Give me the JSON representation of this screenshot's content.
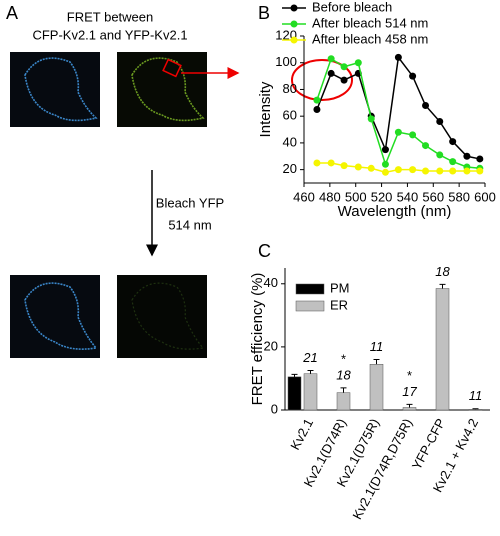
{
  "panel_a": {
    "label": "A",
    "title_line1": "FRET between",
    "title_line2": "CFP-Kv2.1 and YFP-Kv2.1",
    "bleach_line1": "Bleach YFP",
    "bleach_line2": "514 nm"
  },
  "chart_data": [
    {
      "type": "line",
      "panel_label": "B",
      "x_label": "Wavelength (nm)",
      "y_label": "Intensity",
      "x": [
        470,
        481,
        491,
        502,
        512,
        523,
        533,
        544,
        554,
        565,
        575,
        586,
        596
      ],
      "series": [
        {
          "name": "Before bleach",
          "color": "#000000",
          "values": [
            65,
            92,
            87,
            92,
            60,
            35,
            104,
            90,
            68,
            56,
            41,
            30,
            28
          ]
        },
        {
          "name": "After bleach 514 nm",
          "color": "#22dd22",
          "values": [
            72,
            103,
            97,
            100,
            58,
            24,
            48,
            46,
            38,
            31,
            26,
            22,
            21
          ]
        },
        {
          "name": "After bleach 458 nm",
          "color": "#f5f500",
          "values": [
            25,
            25,
            23,
            22,
            21,
            18,
            20,
            20,
            19,
            19,
            19,
            19,
            19
          ]
        }
      ],
      "xlim": [
        460,
        600
      ],
      "xticks": [
        460,
        480,
        500,
        520,
        540,
        560,
        580,
        600
      ],
      "ylim": [
        10,
        120
      ],
      "yticks": [
        20,
        40,
        60,
        80,
        100,
        120
      ],
      "legend": "top"
    },
    {
      "type": "bar",
      "panel_label": "C",
      "y_label": "FRET efficiency (%)",
      "categories": [
        "Kv2.1",
        "Kv2.1(D74R)",
        "Kv2.1(D75R)",
        "Kv2.1(D74R,D75R)",
        "YFP-CFP",
        "Kv2.1 + Kv4.2"
      ],
      "series": [
        {
          "name": "PM",
          "color": "#000000",
          "values": [
            10.5,
            null,
            null,
            null,
            null,
            null
          ],
          "errors": [
            0.8,
            null,
            null,
            null,
            null,
            null
          ]
        },
        {
          "name": "ER",
          "color": "#c0c0c0",
          "values": [
            11.5,
            5.5,
            14.5,
            0.8,
            38.5,
            0.2
          ],
          "errors": [
            1,
            1.5,
            1.5,
            1,
            1.3,
            0.2
          ]
        }
      ],
      "n_labels": [
        "21",
        "18",
        "11",
        "17",
        "18",
        "11"
      ],
      "significance": [
        null,
        "*",
        null,
        "*",
        null,
        null
      ],
      "ylim": [
        0,
        45
      ],
      "yticks": [
        0,
        20,
        40
      ],
      "legend": "top-left"
    }
  ]
}
